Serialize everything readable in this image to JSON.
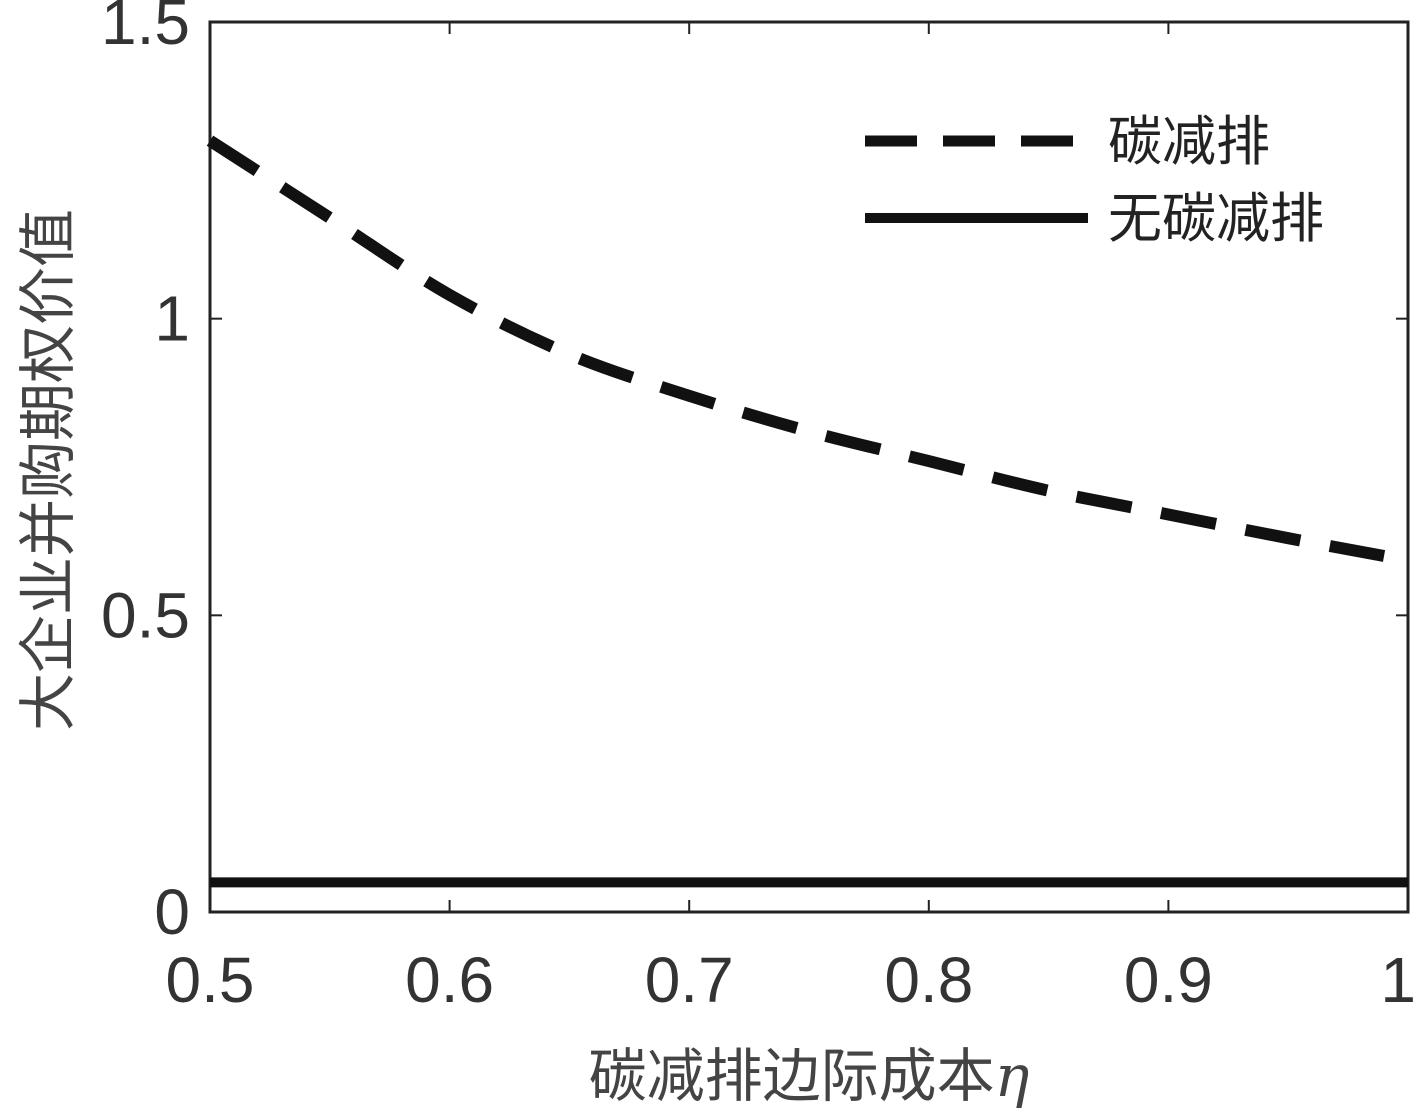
{
  "chart_data": {
    "type": "line",
    "title": "",
    "xlabel": "碳减排边际成本",
    "xlabel_symbol": "η",
    "ylabel": "大企业并购期权价值",
    "xlim": [
      0.5,
      1
    ],
    "ylim": [
      0,
      1.5
    ],
    "x_ticks": [
      0.5,
      0.6,
      0.7,
      0.8,
      0.9,
      1
    ],
    "x_tick_labels": [
      "0.5",
      "0.6",
      "0.7",
      "0.8",
      "0.9",
      "1"
    ],
    "y_ticks": [
      0,
      0.5,
      1,
      1.5
    ],
    "y_tick_labels": [
      "0",
      "0.5",
      "1",
      "1.5"
    ],
    "grid": false,
    "legend_position": "top-right",
    "series": [
      {
        "name": "碳减排",
        "style": "dashed",
        "color": "#111111",
        "x": [
          0.5,
          0.55,
          0.6,
          0.65,
          0.7,
          0.75,
          0.8,
          0.85,
          0.9,
          0.95,
          0.99
        ],
        "y": [
          1.3,
          1.17,
          1.04,
          0.94,
          0.87,
          0.81,
          0.76,
          0.71,
          0.67,
          0.63,
          0.6
        ]
      },
      {
        "name": "无碳减排",
        "style": "solid",
        "color": "#111111",
        "x": [
          0.5,
          1
        ],
        "y": [
          0.05,
          0.05
        ]
      }
    ]
  }
}
